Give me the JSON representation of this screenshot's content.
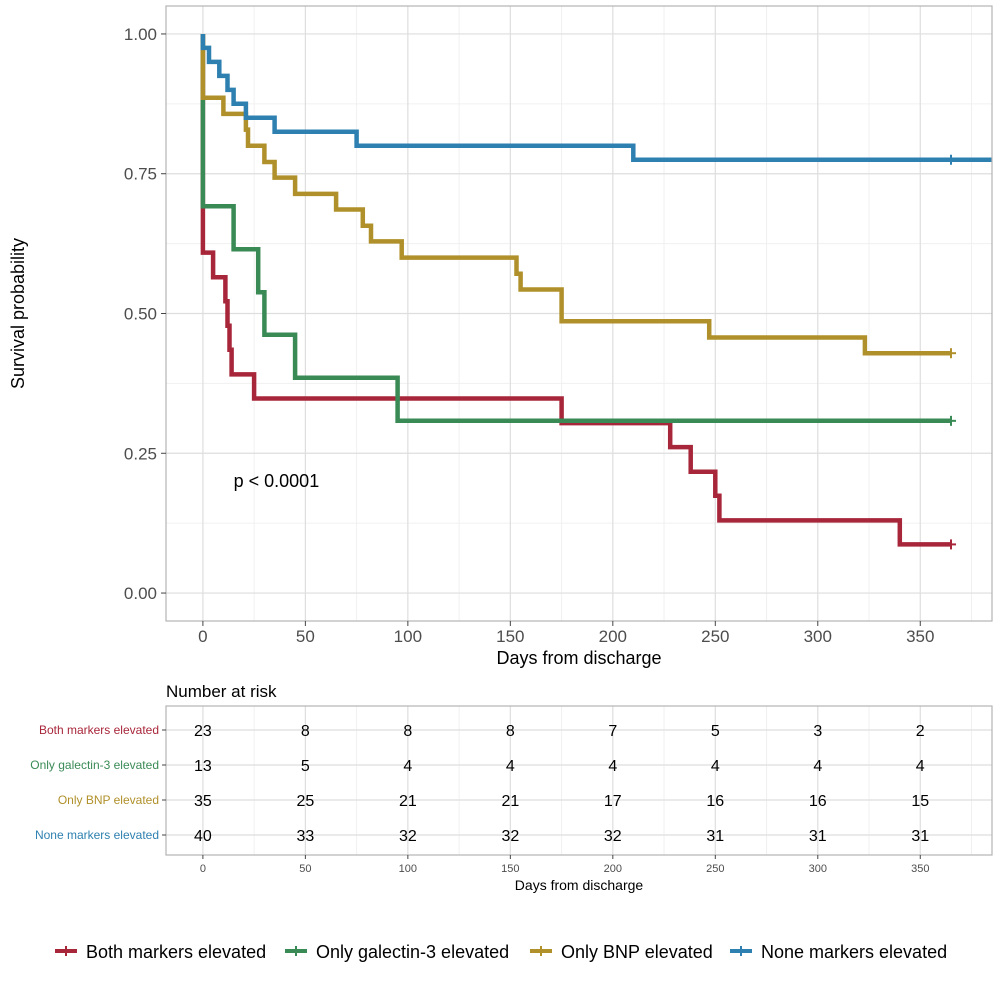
{
  "chart_data": [
    {
      "type": "line",
      "subtype": "kaplan-meier step",
      "xlabel": "Days from discharge",
      "ylabel": "Survival probability",
      "xlim": [
        -18,
        385
      ],
      "ylim": [
        -0.05,
        1.05
      ],
      "x_ticks": [
        0,
        50,
        100,
        150,
        200,
        250,
        300,
        350
      ],
      "x_tick_labels": [
        "0",
        "50",
        "100",
        "150",
        "200",
        "250",
        "300",
        "350"
      ],
      "y_ticks": [
        0,
        0.25,
        0.5,
        0.75,
        1.0
      ],
      "y_tick_labels": [
        "0.00",
        "0.25",
        "0.50",
        "0.75",
        "1.00"
      ],
      "grid": true,
      "annotation": "p < 0.0001",
      "annotation_position": {
        "x": 15,
        "y": 0.19
      },
      "censor_marks": "+",
      "series": [
        {
          "name": "Both markers elevated",
          "color": "#A8263A",
          "x": [
            0,
            0,
            5,
            5,
            11,
            11,
            12,
            12,
            13,
            13,
            14,
            14,
            25,
            25,
            175,
            175,
            228,
            228,
            238,
            238,
            250,
            250,
            252,
            252,
            340,
            340,
            365
          ],
          "y": [
            1.0,
            0.609,
            0.609,
            0.565,
            0.565,
            0.522,
            0.522,
            0.478,
            0.478,
            0.435,
            0.435,
            0.391,
            0.391,
            0.348,
            0.348,
            0.304,
            0.304,
            0.261,
            0.261,
            0.217,
            0.217,
            0.174,
            0.174,
            0.13,
            0.13,
            0.087,
            0.087
          ],
          "censor_x": [
            365
          ],
          "censor_y": [
            0.087
          ]
        },
        {
          "name": "Only galectin-3 elevated",
          "color": "#3A8A55",
          "x": [
            0,
            0,
            15,
            15,
            27,
            27,
            30,
            30,
            45,
            45,
            95,
            95,
            365
          ],
          "y": [
            1.0,
            0.692,
            0.692,
            0.615,
            0.615,
            0.538,
            0.538,
            0.462,
            0.462,
            0.385,
            0.385,
            0.308,
            0.308
          ],
          "censor_x": [
            365
          ],
          "censor_y": [
            0.308
          ]
        },
        {
          "name": "Only BNP elevated",
          "color": "#B0902A",
          "x": [
            0,
            0,
            10,
            10,
            21,
            21,
            22,
            22,
            30,
            30,
            35,
            35,
            45,
            45,
            65,
            65,
            78,
            78,
            82,
            82,
            97,
            97,
            153,
            153,
            155,
            155,
            175,
            175,
            247,
            247,
            323,
            323,
            365
          ],
          "y": [
            1.0,
            0.886,
            0.886,
            0.857,
            0.857,
            0.829,
            0.829,
            0.8,
            0.8,
            0.771,
            0.771,
            0.743,
            0.743,
            0.714,
            0.714,
            0.686,
            0.686,
            0.657,
            0.657,
            0.629,
            0.629,
            0.6,
            0.6,
            0.571,
            0.571,
            0.543,
            0.543,
            0.486,
            0.486,
            0.457,
            0.457,
            0.429,
            0.429
          ],
          "censor_x": [
            365
          ],
          "censor_y": [
            0.429
          ]
        },
        {
          "name": "None markers elevated",
          "color": "#2E80B0",
          "x": [
            0,
            0,
            3,
            3,
            8,
            8,
            12,
            12,
            15,
            15,
            21,
            21,
            35,
            35,
            75,
            75,
            210,
            210,
            385
          ],
          "y": [
            1.0,
            0.975,
            0.975,
            0.95,
            0.95,
            0.925,
            0.925,
            0.9,
            0.9,
            0.875,
            0.875,
            0.85,
            0.85,
            0.825,
            0.825,
            0.8,
            0.8,
            0.775,
            0.775
          ],
          "censor_x": [
            365
          ],
          "censor_y": [
            0.775
          ]
        }
      ]
    },
    {
      "type": "table",
      "title": "Number at risk",
      "xlabel": "Days from discharge",
      "x_ticks": [
        0,
        50,
        100,
        150,
        200,
        250,
        300,
        350
      ],
      "x_tick_labels": [
        "0",
        "50",
        "100",
        "150",
        "200",
        "250",
        "300",
        "350"
      ],
      "grid": true,
      "rows": [
        {
          "label": "Both markers elevated",
          "color": "#A8263A",
          "values": [
            "23",
            "8",
            "8",
            "8",
            "7",
            "5",
            "3",
            "2"
          ]
        },
        {
          "label": "Only galectin-3 elevated",
          "color": "#3A8A55",
          "values": [
            "13",
            "5",
            "4",
            "4",
            "4",
            "4",
            "4",
            "4"
          ]
        },
        {
          "label": "Only BNP elevated",
          "color": "#B0902A",
          "values": [
            "35",
            "25",
            "21",
            "21",
            "17",
            "16",
            "16",
            "15"
          ]
        },
        {
          "label": "None markers elevated",
          "color": "#2E80B0",
          "values": [
            "40",
            "33",
            "32",
            "32",
            "32",
            "31",
            "31",
            "31"
          ]
        }
      ]
    }
  ],
  "legend": {
    "position": "bottom",
    "items": [
      {
        "label": "Both markers elevated",
        "color": "#A8263A"
      },
      {
        "label": "Only galectin-3 elevated",
        "color": "#3A8A55"
      },
      {
        "label": "Only BNP elevated",
        "color": "#B0902A"
      },
      {
        "label": "None markers elevated",
        "color": "#2E80B0"
      }
    ]
  }
}
